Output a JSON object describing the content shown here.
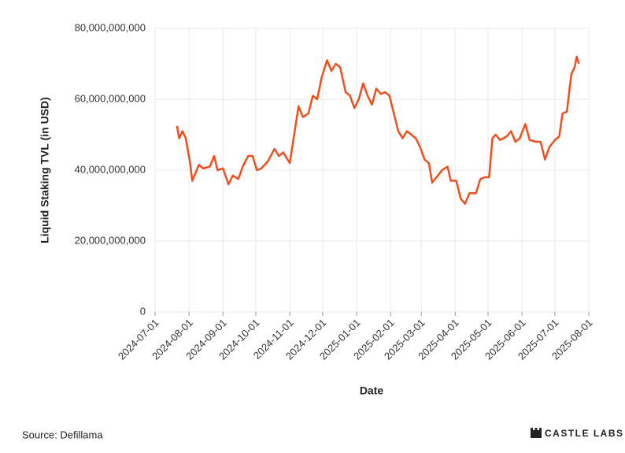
{
  "chart_data": {
    "type": "line",
    "y_label": "Liquid Staking TVL (in USD)",
    "x_label": "Date",
    "source": "Source: Defillama",
    "brand": "CASTLE LABS",
    "xlim": [
      "2024-07-01",
      "2025-08-01"
    ],
    "xticks": [
      "2024-07-01",
      "2024-08-01",
      "2024-09-01",
      "2024-10-01",
      "2024-11-01",
      "2024-12-01",
      "2025-01-01",
      "2025-02-01",
      "2025-03-01",
      "2025-04-01",
      "2025-05-01",
      "2025-06-01",
      "2025-07-01",
      "2025-08-01"
    ],
    "ylim": [
      0,
      80000000000
    ],
    "yticks": [
      0,
      {
        "value": 20000000000,
        "label": "20,000,000,000"
      },
      {
        "value": 40000000000,
        "label": "40,000,000,000"
      },
      {
        "value": 60000000000,
        "label": "60,000,000,000"
      },
      {
        "value": 80000000000,
        "label": "80,000,000,000"
      }
    ],
    "grid": true,
    "x": [
      "2024-07-21",
      "2024-07-23",
      "2024-07-26",
      "2024-07-29",
      "2024-08-02",
      "2024-08-04",
      "2024-08-06",
      "2024-08-10",
      "2024-08-14",
      "2024-08-20",
      "2024-08-24",
      "2024-08-27",
      "2024-09-01",
      "2024-09-06",
      "2024-09-10",
      "2024-09-15",
      "2024-09-19",
      "2024-09-24",
      "2024-09-28",
      "2024-10-02",
      "2024-10-06",
      "2024-10-12",
      "2024-10-18",
      "2024-10-22",
      "2024-10-26",
      "2024-11-01",
      "2024-11-05",
      "2024-11-09",
      "2024-11-13",
      "2024-11-18",
      "2024-11-22",
      "2024-11-26",
      "2024-11-30",
      "2024-12-05",
      "2024-12-09",
      "2024-12-13",
      "2024-12-17",
      "2024-12-22",
      "2024-12-26",
      "2024-12-30",
      "2025-01-03",
      "2025-01-07",
      "2025-01-11",
      "2025-01-15",
      "2025-01-19",
      "2025-01-23",
      "2025-01-27",
      "2025-01-31",
      "2025-02-04",
      "2025-02-08",
      "2025-02-12",
      "2025-02-16",
      "2025-02-20",
      "2025-02-24",
      "2025-02-28",
      "2025-03-04",
      "2025-03-08",
      "2025-03-11",
      "2025-03-15",
      "2025-03-20",
      "2025-03-25",
      "2025-03-28",
      "2025-04-02",
      "2025-04-06",
      "2025-04-10",
      "2025-04-14",
      "2025-04-20",
      "2025-04-24",
      "2025-04-28",
      "2025-05-02",
      "2025-05-05",
      "2025-05-08",
      "2025-05-12",
      "2025-05-18",
      "2025-05-22",
      "2025-05-26",
      "2025-05-30",
      "2025-06-04",
      "2025-06-08",
      "2025-06-14",
      "2025-06-18",
      "2025-06-22",
      "2025-06-26",
      "2025-07-01",
      "2025-07-05",
      "2025-07-08",
      "2025-07-12",
      "2025-07-16",
      "2025-07-19",
      "2025-07-21",
      "2025-07-23"
    ],
    "series": [
      {
        "name": "Liquid Staking TVL",
        "color": "#f04e1c",
        "values": [
          52500000000,
          49000000000,
          51000000000,
          49000000000,
          42000000000,
          37000000000,
          38500000000,
          41500000000,
          40500000000,
          41000000000,
          44000000000,
          40000000000,
          40500000000,
          36000000000,
          38500000000,
          37500000000,
          41000000000,
          44000000000,
          44000000000,
          40000000000,
          40500000000,
          42500000000,
          46000000000,
          44000000000,
          45000000000,
          42000000000,
          50000000000,
          58000000000,
          55000000000,
          56000000000,
          61000000000,
          60000000000,
          66000000000,
          71000000000,
          68000000000,
          70000000000,
          69000000000,
          62000000000,
          61000000000,
          57500000000,
          60000000000,
          64500000000,
          61000000000,
          58500000000,
          63000000000,
          61500000000,
          62000000000,
          61000000000,
          56000000000,
          51000000000,
          49000000000,
          51000000000,
          50000000000,
          49000000000,
          46500000000,
          43000000000,
          42000000000,
          36500000000,
          38000000000,
          40000000000,
          41000000000,
          37000000000,
          37000000000,
          32000000000,
          30500000000,
          33500000000,
          33500000000,
          37500000000,
          38000000000,
          38000000000,
          49000000000,
          50000000000,
          48500000000,
          49500000000,
          51000000000,
          48000000000,
          49000000000,
          53000000000,
          48500000000,
          48000000000,
          48000000000,
          43000000000,
          46500000000,
          48500000000,
          49500000000,
          56000000000,
          56500000000,
          67000000000,
          69000000000,
          72000000000,
          70000000000
        ]
      }
    ]
  }
}
